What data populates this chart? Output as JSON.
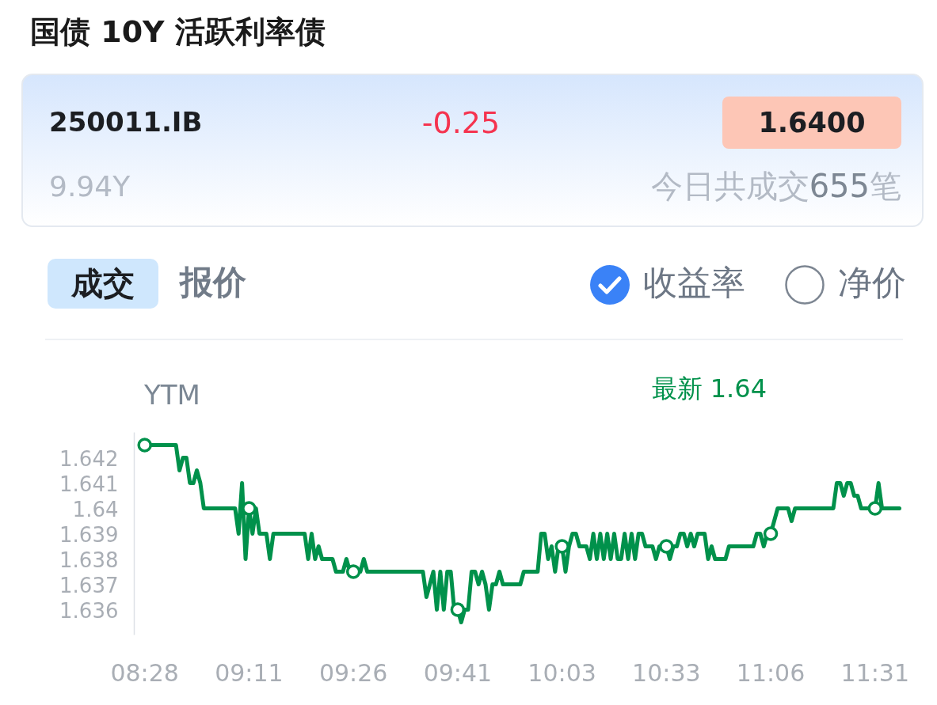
{
  "chart_data": {
    "type": "line",
    "title": "国债 10Y 活跃利率债",
    "ylabel": "YTM",
    "annotations": [
      "250011.IB",
      "-0.25",
      "1.6400",
      "9.94Y",
      "今日共成交655笔",
      "成交",
      "报价",
      "收益率",
      "净价",
      "最新 1.64"
    ],
    "categories": [
      "08:28",
      null,
      null,
      null,
      null,
      null,
      null,
      null,
      null,
      null,
      null,
      null,
      null,
      null,
      null,
      null,
      null,
      null,
      null,
      null,
      null,
      null,
      null,
      null,
      null,
      null,
      null,
      null,
      null,
      null,
      "09:11",
      null,
      null,
      null,
      null,
      null,
      null,
      null,
      null,
      null,
      null,
      null,
      null,
      null,
      null,
      null,
      null,
      null,
      null,
      null,
      null,
      null,
      null,
      null,
      null,
      null,
      null,
      null,
      null,
      null,
      "09:26",
      null,
      null,
      null,
      null,
      null,
      null,
      null,
      null,
      null,
      null,
      null,
      null,
      null,
      null,
      null,
      null,
      null,
      null,
      null,
      null,
      null,
      null,
      null,
      null,
      null,
      null,
      null,
      null,
      null,
      "09:41",
      null,
      null,
      null,
      null,
      null,
      null,
      null,
      null,
      null,
      null,
      null,
      null,
      null,
      null,
      null,
      null,
      null,
      null,
      null,
      null,
      null,
      null,
      null,
      null,
      null,
      null,
      null,
      null,
      null,
      "10:03",
      null,
      null,
      null,
      null,
      null,
      null,
      null,
      null,
      null,
      null,
      null,
      null,
      null,
      null,
      null,
      null,
      null,
      null,
      null,
      null,
      null,
      null,
      null,
      null,
      null,
      null,
      null,
      null,
      null,
      "10:33",
      null,
      null,
      null,
      null,
      null,
      null,
      null,
      null,
      null,
      null,
      null,
      null,
      null,
      null,
      null,
      null,
      null,
      null,
      null,
      null,
      null,
      null,
      null,
      null,
      null,
      null,
      null,
      null,
      null,
      "11:06",
      null,
      null,
      null,
      null,
      null,
      null,
      null,
      null,
      null,
      null,
      null,
      null,
      null,
      null,
      null,
      null,
      null,
      null,
      null,
      null,
      null,
      null,
      null,
      null,
      null,
      null,
      null,
      null,
      null,
      "11:31",
      null,
      null,
      null,
      null,
      null,
      null,
      null
    ],
    "ylim": [
      1.635,
      1.643
    ],
    "yticks": [
      1.636,
      1.637,
      1.638,
      1.639,
      1.64,
      1.641,
      1.642
    ],
    "series": [
      {
        "color": "#00914b",
        "values": [
          1.6425,
          1.6425,
          1.6425,
          1.6425,
          1.6425,
          1.6425,
          1.6425,
          1.6425,
          1.6425,
          1.6425,
          1.6415,
          1.642,
          1.642,
          1.641,
          1.641,
          1.6415,
          1.641,
          1.64,
          1.64,
          1.64,
          1.64,
          1.64,
          1.64,
          1.64,
          1.64,
          1.64,
          1.64,
          1.639,
          1.641,
          1.638,
          1.64,
          1.639,
          1.64,
          1.639,
          1.639,
          1.639,
          1.638,
          1.639,
          1.639,
          1.639,
          1.639,
          1.639,
          1.639,
          1.639,
          1.639,
          1.639,
          1.639,
          1.638,
          1.639,
          1.638,
          1.6385,
          1.638,
          1.638,
          1.638,
          1.638,
          1.6375,
          1.6375,
          1.6375,
          1.638,
          1.6375,
          1.6375,
          1.6375,
          1.6375,
          1.638,
          1.6375,
          1.6375,
          1.6375,
          1.6375,
          1.6375,
          1.6375,
          1.6375,
          1.6375,
          1.6375,
          1.6375,
          1.6375,
          1.6375,
          1.6375,
          1.6375,
          1.6375,
          1.6375,
          1.6375,
          1.6365,
          1.637,
          1.6375,
          1.636,
          1.6375,
          1.636,
          1.6375,
          1.6375,
          1.636,
          1.636,
          1.6355,
          1.636,
          1.636,
          1.6375,
          1.6375,
          1.637,
          1.6375,
          1.637,
          1.636,
          1.637,
          1.637,
          1.6375,
          1.637,
          1.637,
          1.637,
          1.637,
          1.637,
          1.637,
          1.6375,
          1.6375,
          1.6375,
          1.6375,
          1.6375,
          1.639,
          1.639,
          1.638,
          1.6385,
          1.6375,
          1.6385,
          1.6385,
          1.6375,
          1.6385,
          1.639,
          1.639,
          1.6385,
          1.6385,
          1.6385,
          1.638,
          1.639,
          1.638,
          1.639,
          1.638,
          1.639,
          1.638,
          1.639,
          1.638,
          1.638,
          1.639,
          1.638,
          1.639,
          1.638,
          1.639,
          1.639,
          1.6385,
          1.6385,
          1.6385,
          1.638,
          1.6385,
          1.6385,
          1.6385,
          1.638,
          1.6385,
          1.6385,
          1.639,
          1.639,
          1.6385,
          1.639,
          1.6385,
          1.639,
          1.639,
          1.639,
          1.638,
          1.6385,
          1.638,
          1.638,
          1.638,
          1.638,
          1.6385,
          1.6385,
          1.6385,
          1.6385,
          1.6385,
          1.6385,
          1.6385,
          1.6385,
          1.639,
          1.639,
          1.6385,
          1.639,
          1.639,
          1.6395,
          1.64,
          1.64,
          1.64,
          1.64,
          1.6395,
          1.64,
          1.64,
          1.64,
          1.64,
          1.64,
          1.64,
          1.64,
          1.64,
          1.64,
          1.64,
          1.64,
          1.64,
          1.641,
          1.641,
          1.6405,
          1.641,
          1.641,
          1.6405,
          1.6405,
          1.64,
          1.64,
          1.64,
          1.64,
          1.64,
          1.641,
          1.64,
          1.64,
          1.64,
          1.64,
          1.64,
          1.64
        ]
      },
      {
        "type": "scatter",
        "marker": "circle",
        "color": "#00914b",
        "x": [
          "08:28",
          "09:11",
          "09:26",
          "09:41",
          "10:03",
          "10:33",
          "11:06",
          "11:31"
        ],
        "values": [
          1.6425,
          1.64,
          1.6375,
          1.636,
          1.6385,
          1.6385,
          1.639,
          1.64
        ]
      }
    ]
  }
}
